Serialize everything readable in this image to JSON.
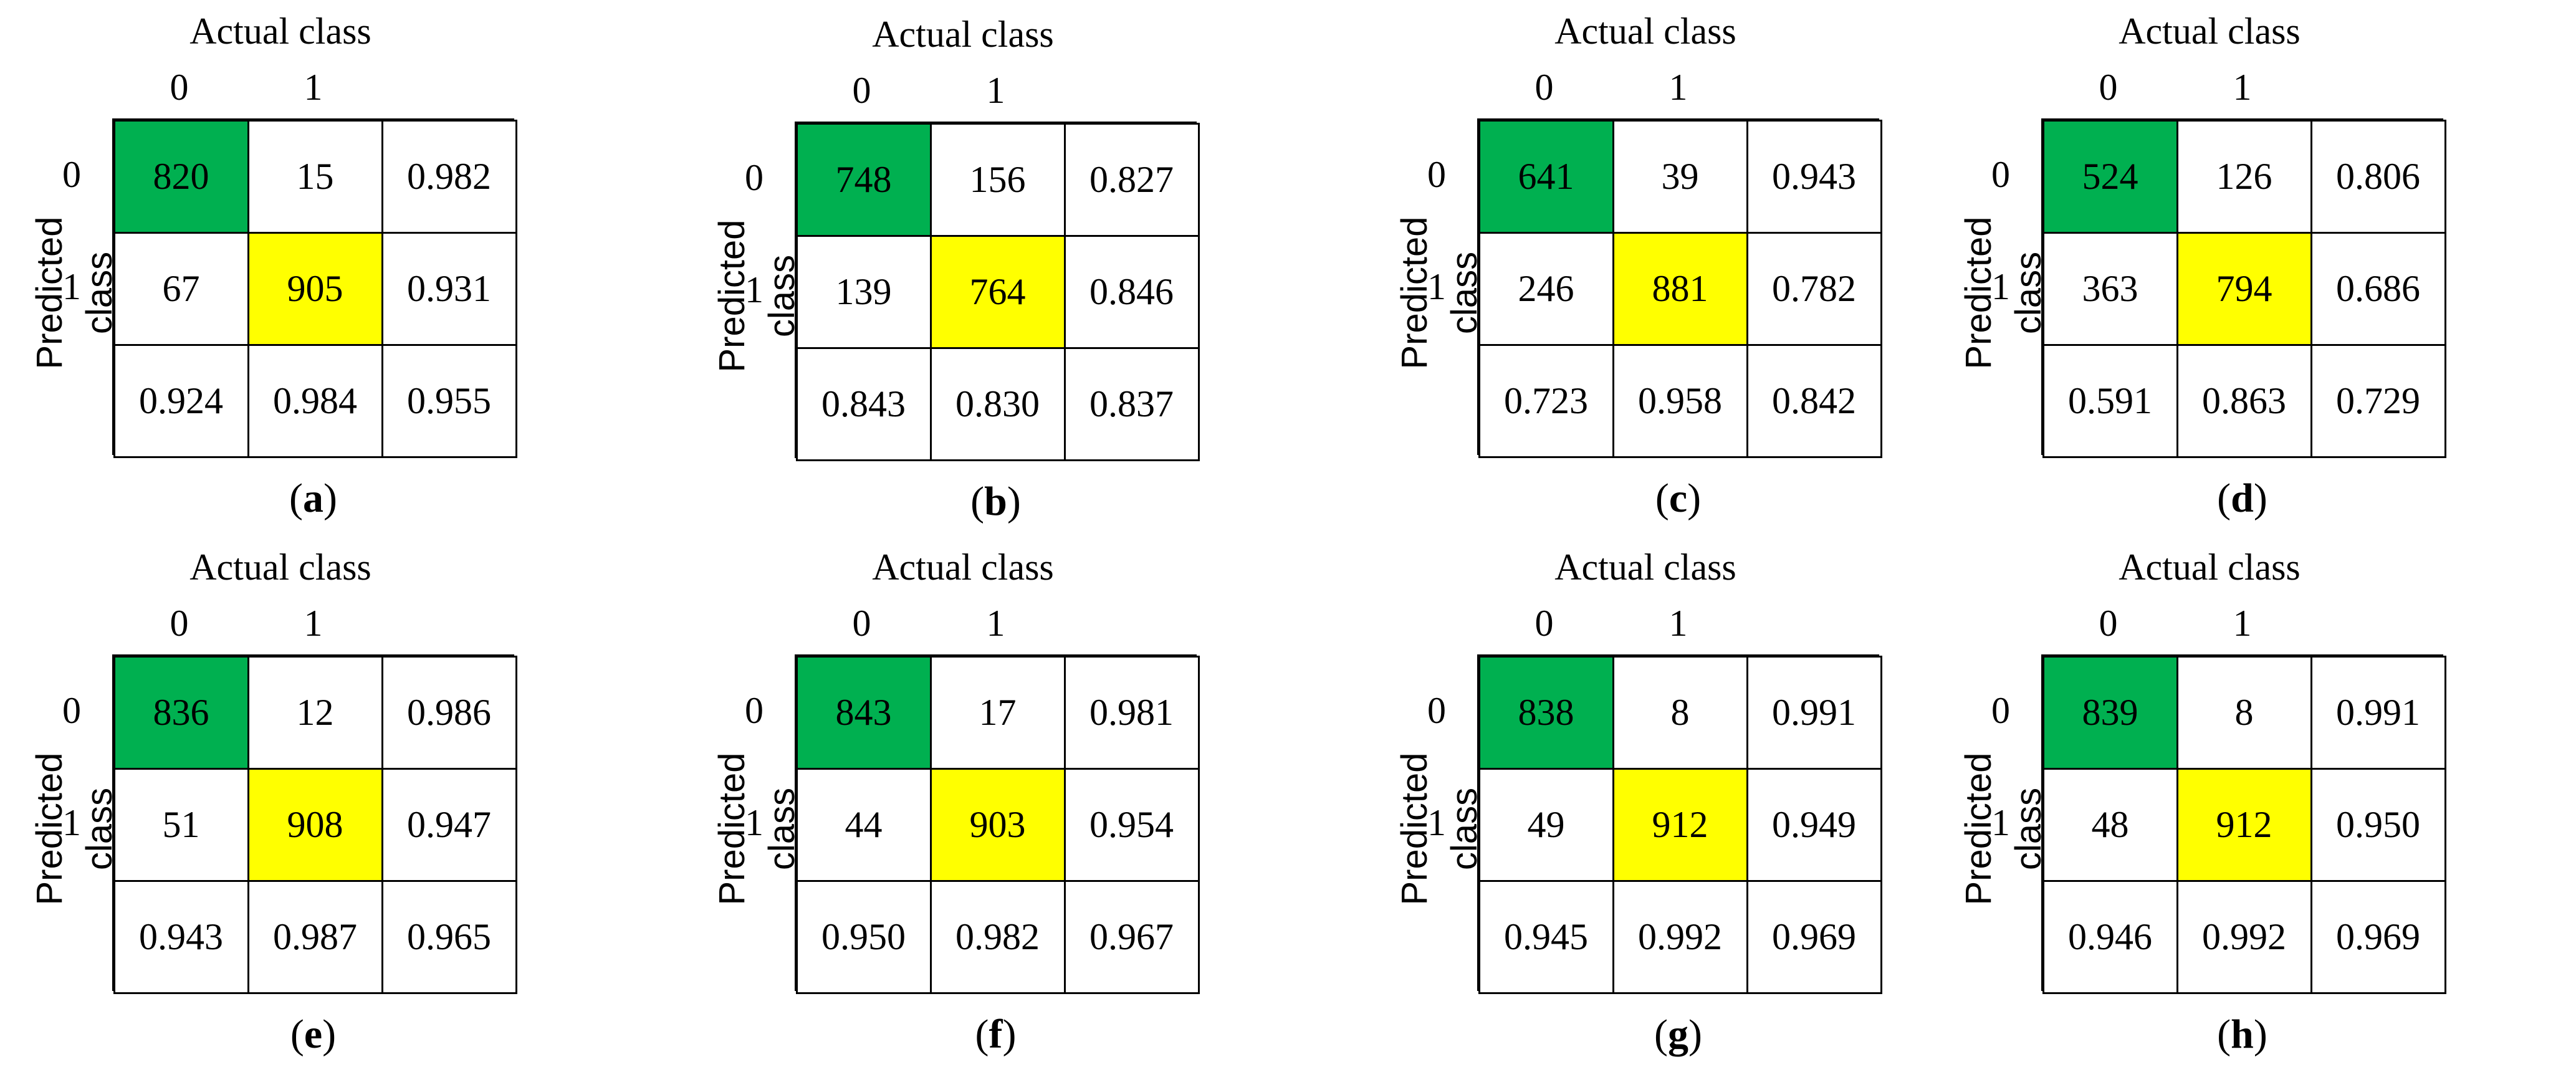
{
  "chart_data": [
    {
      "type": "table",
      "caption_letter": "a",
      "title": "Actual class",
      "ylabel": "Predicted class",
      "col_labels": [
        "0",
        "1"
      ],
      "row_labels": [
        "0",
        "1"
      ],
      "rows": [
        [
          "820",
          "15",
          "0.982"
        ],
        [
          "67",
          "905",
          "0.931"
        ],
        [
          "0.924",
          "0.984",
          "0.955"
        ]
      ]
    },
    {
      "type": "table",
      "caption_letter": "b",
      "title": "Actual class",
      "ylabel": "Predicted class",
      "col_labels": [
        "0",
        "1"
      ],
      "row_labels": [
        "0",
        "1"
      ],
      "rows": [
        [
          "748",
          "156",
          "0.827"
        ],
        [
          "139",
          "764",
          "0.846"
        ],
        [
          "0.843",
          "0.830",
          "0.837"
        ]
      ]
    },
    {
      "type": "table",
      "caption_letter": "c",
      "title": "Actual class",
      "ylabel": "Predicted class",
      "col_labels": [
        "0",
        "1"
      ],
      "row_labels": [
        "0",
        "1"
      ],
      "rows": [
        [
          "641",
          "39",
          "0.943"
        ],
        [
          "246",
          "881",
          "0.782"
        ],
        [
          "0.723",
          "0.958",
          "0.842"
        ]
      ]
    },
    {
      "type": "table",
      "caption_letter": "d",
      "title": "Actual class",
      "ylabel": "Predicted class",
      "col_labels": [
        "0",
        "1"
      ],
      "row_labels": [
        "0",
        "1"
      ],
      "rows": [
        [
          "524",
          "126",
          "0.806"
        ],
        [
          "363",
          "794",
          "0.686"
        ],
        [
          "0.591",
          "0.863",
          "0.729"
        ]
      ]
    },
    {
      "type": "table",
      "caption_letter": "e",
      "title": "Actual class",
      "ylabel": "Predicted class",
      "col_labels": [
        "0",
        "1"
      ],
      "row_labels": [
        "0",
        "1"
      ],
      "rows": [
        [
          "836",
          "12",
          "0.986"
        ],
        [
          "51",
          "908",
          "0.947"
        ],
        [
          "0.943",
          "0.987",
          "0.965"
        ]
      ]
    },
    {
      "type": "table",
      "caption_letter": "f",
      "title": "Actual class",
      "ylabel": "Predicted class",
      "col_labels": [
        "0",
        "1"
      ],
      "row_labels": [
        "0",
        "1"
      ],
      "rows": [
        [
          "843",
          "17",
          "0.981"
        ],
        [
          "44",
          "903",
          "0.954"
        ],
        [
          "0.950",
          "0.982",
          "0.967"
        ]
      ]
    },
    {
      "type": "table",
      "caption_letter": "g",
      "title": "Actual class",
      "ylabel": "Predicted class",
      "col_labels": [
        "0",
        "1"
      ],
      "row_labels": [
        "0",
        "1"
      ],
      "rows": [
        [
          "838",
          "8",
          "0.991"
        ],
        [
          "49",
          "912",
          "0.949"
        ],
        [
          "0.945",
          "0.992",
          "0.969"
        ]
      ]
    },
    {
      "type": "table",
      "caption_letter": "h",
      "title": "Actual class",
      "ylabel": "Predicted class",
      "col_labels": [
        "0",
        "1"
      ],
      "row_labels": [
        "0",
        "1"
      ],
      "rows": [
        [
          "839",
          "8",
          "0.991"
        ],
        [
          "48",
          "912",
          "0.950"
        ],
        [
          "0.946",
          "0.992",
          "0.969"
        ]
      ]
    }
  ],
  "colors": {
    "true_negative": "#00b050",
    "true_positive": "#ffff00",
    "border": "#000000"
  }
}
